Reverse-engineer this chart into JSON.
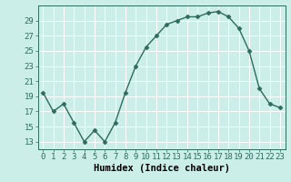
{
  "x": [
    0,
    1,
    2,
    3,
    4,
    5,
    6,
    7,
    8,
    9,
    10,
    11,
    12,
    13,
    14,
    15,
    16,
    17,
    18,
    19,
    20,
    21,
    22,
    23
  ],
  "y": [
    19.5,
    17.0,
    18.0,
    15.5,
    13.0,
    14.5,
    13.0,
    15.5,
    19.5,
    23.0,
    25.5,
    27.0,
    28.5,
    29.0,
    29.5,
    29.5,
    30.0,
    30.2,
    29.5,
    28.0,
    25.0,
    20.0,
    18.0,
    17.5
  ],
  "line_color": "#2e6b5e",
  "marker": "D",
  "marker_size": 2.5,
  "background_color": "#cceee8",
  "grid_color": "#ffffff",
  "xlabel": "Humidex (Indice chaleur)",
  "ylim": [
    12,
    31
  ],
  "yticks": [
    13,
    15,
    17,
    19,
    21,
    23,
    25,
    27,
    29
  ],
  "xlim": [
    -0.5,
    23.5
  ],
  "xticks": [
    0,
    1,
    2,
    3,
    4,
    5,
    6,
    7,
    8,
    9,
    10,
    11,
    12,
    13,
    14,
    15,
    16,
    17,
    18,
    19,
    20,
    21,
    22,
    23
  ],
  "xlabel_fontsize": 7.5,
  "tick_fontsize": 6.5,
  "line_width": 1.0
}
